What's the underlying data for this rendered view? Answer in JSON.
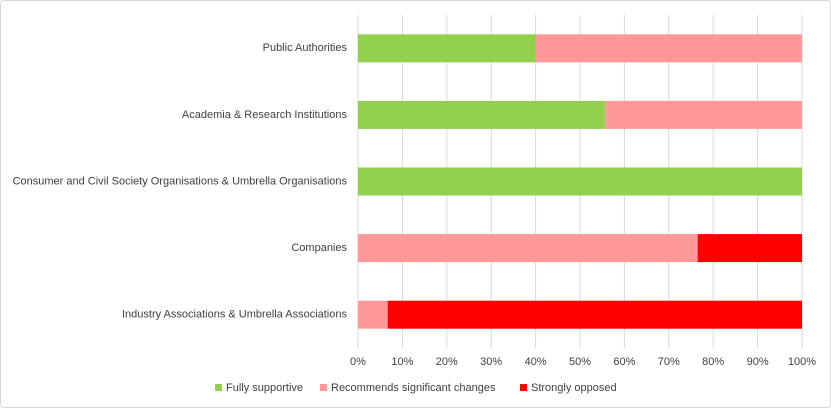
{
  "chart_data": {
    "type": "stacked-barh",
    "categories": [
      "Public Authorities",
      "Academia & Research Institutions",
      "Consumer and Civil Society Organisations & Umbrella Organisations",
      "Companies",
      "Industry Associations & Umbrella Associations"
    ],
    "series": [
      {
        "name": "Fully supportive",
        "color": "#92d050",
        "values": [
          40,
          55.6,
          100,
          0,
          0
        ]
      },
      {
        "name": "Recommends significant changes",
        "color": "#ff9999",
        "values": [
          60,
          44.4,
          0,
          76.5,
          6.7
        ]
      },
      {
        "name": "Strongly opposed",
        "color": "#ff0000",
        "values": [
          0,
          0,
          0,
          23.5,
          93.3
        ]
      }
    ],
    "xlim": [
      0,
      100
    ],
    "xticks": [
      {
        "value": 0,
        "label": "0%"
      },
      {
        "value": 10,
        "label": "10%"
      },
      {
        "value": 20,
        "label": "20%"
      },
      {
        "value": 30,
        "label": "30%"
      },
      {
        "value": 40,
        "label": "40%"
      },
      {
        "value": 50,
        "label": "50%"
      },
      {
        "value": 60,
        "label": "60%"
      },
      {
        "value": 70,
        "label": "70%"
      },
      {
        "value": 80,
        "label": "80%"
      },
      {
        "value": 90,
        "label": "90%"
      },
      {
        "value": 100,
        "label": "100%"
      }
    ],
    "grid": true,
    "legend": "bottom"
  }
}
